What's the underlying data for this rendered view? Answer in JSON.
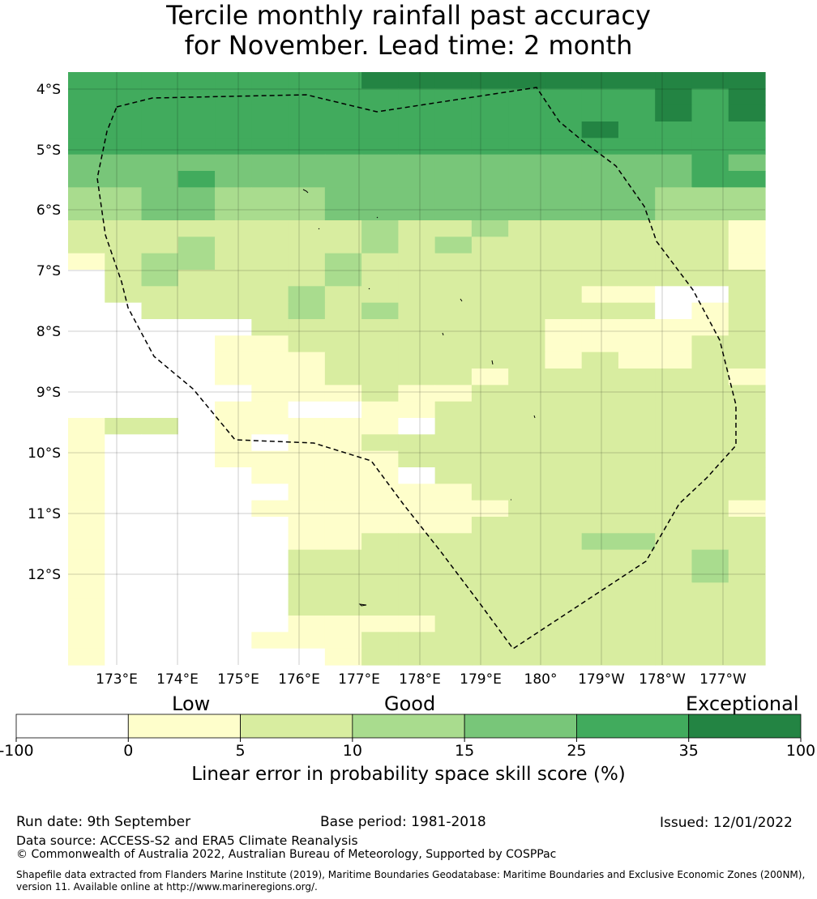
{
  "title_line1": "Tercile monthly rainfall past accuracy",
  "title_line2": "for November. Lead time: 2 month",
  "map": {
    "lon_labels": [
      "173°E",
      "174°E",
      "175°E",
      "176°E",
      "177°E",
      "178°E",
      "179°E",
      "180°",
      "179°W",
      "178°W",
      "177°W"
    ],
    "lat_labels": [
      "4°S",
      "5°S",
      "6°S",
      "7°S",
      "8°S",
      "9°S",
      "10°S",
      "11°S",
      "12°S"
    ],
    "grid_rows": [
      "5555555566666666666",
      "5555555555555555656",
      "5555555555555555656",
      "5555555555555565555",
      "5555555555555555555",
      "4444444444444444454",
      "4445444444444444455",
      "3344333444444444333",
      "3344333444444444333",
      "2222222232232222221",
      "2223222232322222221",
      "1233222322222222221",
      "0232222322222222222",
      "0222223222222211002",
      "0022223232222222012",
      "0000022222222111112",
      "0000112222222111122",
      "0000111222222121122",
      "0000111222212222221",
      "0000011121122222222",
      "0000110011222222222",
      "1220111110222222222",
      "1000101122222222222",
      "1000111112222222222",
      "1000011110222222222",
      "1000001111122222222",
      "1000011111112222221",
      "1000001111122222222",
      "1000001122222233222",
      "1000002222222222232",
      "1000002222222222232",
      "1000002222222222222",
      "1000002222222222222",
      "1000001111222222222",
      "1000011122222222222",
      "1000000122222222222"
    ],
    "eez_boundary": "dashed black line"
  },
  "colorbar": {
    "categories": [
      "Low",
      "Good",
      "Exceptional"
    ],
    "ticks": [
      "-100",
      "0",
      "5",
      "10",
      "15",
      "25",
      "35",
      "100"
    ],
    "colors": [
      "#ffffff",
      "#fefecb",
      "#d8eda0",
      "#a9dc8e",
      "#78c679",
      "#41ab5d",
      "#238443"
    ],
    "label": "Linear error in probability space skill score (%)"
  },
  "footer": {
    "run_date": "Run date: 9th September",
    "base_period": "Base period: 1981-2018",
    "issued": "Issued: 12/01/2022",
    "data_source": "Data source: ACCESS-S2 and ERA5 Climate Reanalysis",
    "copyright": "© Commonwealth of Australia 2022, Australian Bureau of Meteorology, Supported by COSPPac",
    "shapefile_line1": "Shapefile data extracted from Flanders Marine Institute (2019), Maritime Boundaries Geodatabase: Maritime Boundaries and Exclusive Economic Zones (200NM),",
    "shapefile_line2": "version 11. Available online at http://www.marineregions.org/."
  }
}
